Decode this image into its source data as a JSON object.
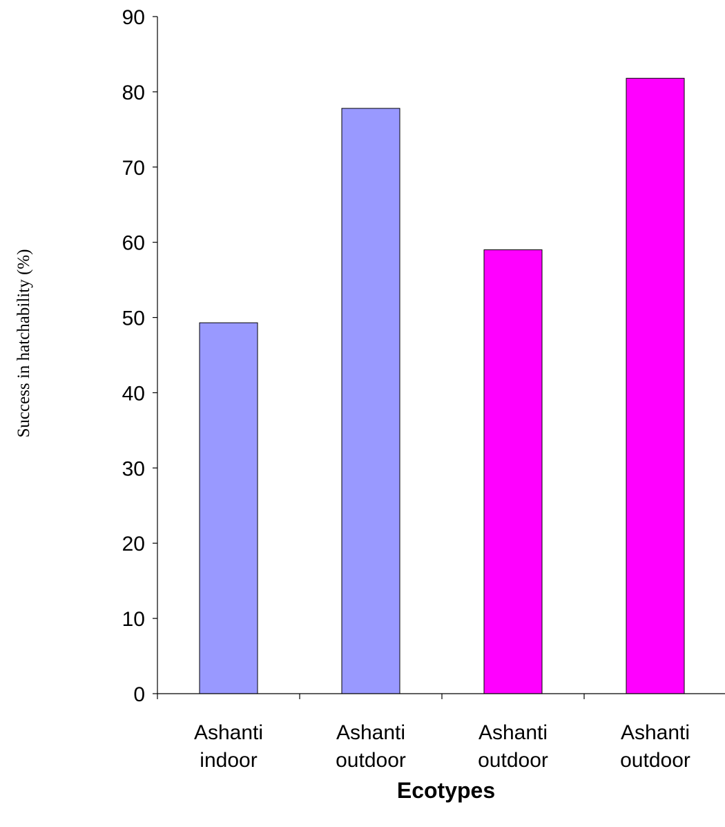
{
  "chart_data": {
    "type": "bar",
    "categories": [
      [
        "Ashanti",
        "indoor"
      ],
      [
        "Ashanti",
        "outdoor"
      ],
      [
        "Ashanti",
        "outdoor"
      ],
      [
        "Ashanti",
        "outdoor"
      ]
    ],
    "values": [
      49.3,
      77.8,
      59.0,
      81.8
    ],
    "bar_colors": [
      "#9999ff",
      "#9999ff",
      "#ff00ff",
      "#ff00ff"
    ],
    "xlabel": "Ecotypes",
    "ylabel": "Success in hatchability (%)",
    "ylim": [
      0,
      90
    ],
    "yticks": [
      0,
      10,
      20,
      30,
      40,
      50,
      60,
      70,
      80,
      90
    ],
    "grid": false,
    "legend": "none"
  }
}
